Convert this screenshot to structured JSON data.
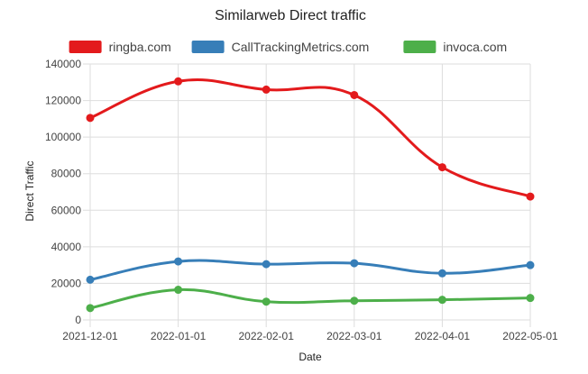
{
  "chart_data": {
    "type": "line",
    "title": "Similarweb Direct traffic",
    "xlabel": "Date",
    "ylabel": "Direct Traffic",
    "ylim": [
      0,
      140000
    ],
    "y_ticks": [
      "0",
      "20000",
      "40000",
      "60000",
      "80000",
      "100000",
      "120000",
      "140000"
    ],
    "categories": [
      "2021-12-01",
      "2022-01-01",
      "2022-02-01",
      "2022-03-01",
      "2022-04-01",
      "2022-05-01"
    ],
    "legend_position": "top",
    "grid": true,
    "series": [
      {
        "name": "ringba.com",
        "color": "#e31a1c",
        "values": [
          110500,
          130500,
          126000,
          123000,
          83500,
          67500
        ]
      },
      {
        "name": "CallTrackingMetrics.com",
        "color": "#377eb8",
        "values": [
          22000,
          32000,
          30500,
          31000,
          25500,
          30000
        ]
      },
      {
        "name": "invoca.com",
        "color": "#4daf4a",
        "values": [
          6500,
          16500,
          10000,
          10500,
          11000,
          12000
        ]
      }
    ]
  }
}
